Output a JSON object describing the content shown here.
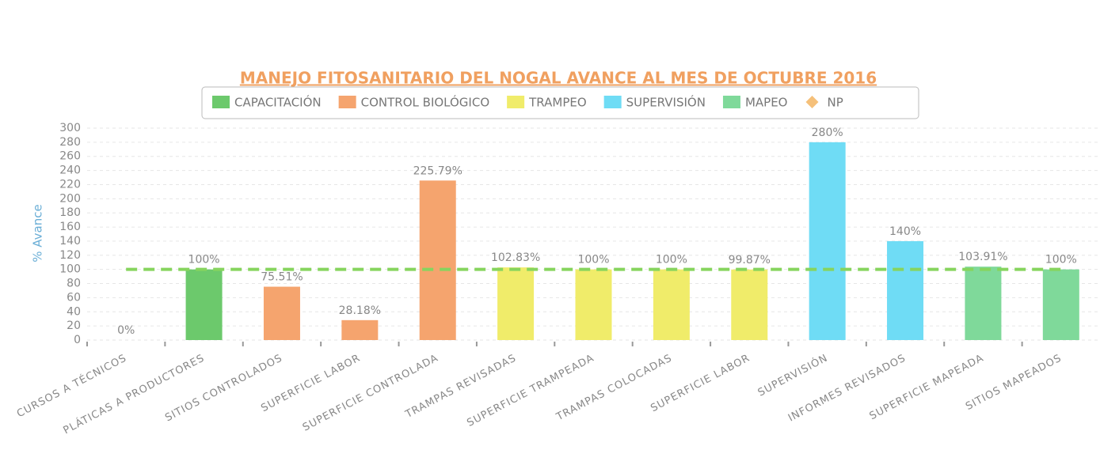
{
  "chart_data": {
    "type": "bar",
    "title": "MANEJO FITOSANITARIO DEL NOGAL AVANCE AL MES DE OCTUBRE 2016",
    "y_label": "% Avance",
    "categories": [
      "CURSOS A TÉCNICOS",
      "PLÁTICAS A PRODUCTORES",
      "SITIOS CONTROLADOS",
      "SUPERFICIE LABOR",
      "SUPERFICIE CONTROLADA",
      "TRAMPAS REVISADAS",
      "SUPERFICIE TRAMPEADA",
      "TRAMPAS COLOCADAS",
      "SUPERFICIE LABOR",
      "SUPERVISIÓN",
      "INFORMES REVISADOS",
      "SUPERFICIE MAPEADA",
      "SITIOS MAPEADOS"
    ],
    "series": [
      {
        "name": "CAPACITACIÓN",
        "color": "#6cc96c",
        "values": [
          0,
          100,
          null,
          null,
          null,
          null,
          null,
          null,
          null,
          null,
          null,
          null,
          null
        ],
        "value_labels": [
          "0%",
          "100%",
          null,
          null,
          null,
          null,
          null,
          null,
          null,
          null,
          null,
          null,
          null
        ]
      },
      {
        "name": "CONTROL BIOLÓGICO",
        "color": "#f5a46e",
        "values": [
          null,
          null,
          75.51,
          28.18,
          225.79,
          null,
          null,
          null,
          null,
          null,
          null,
          null,
          null
        ],
        "value_labels": [
          null,
          null,
          "75.51%",
          "28.18%",
          "225.79%",
          null,
          null,
          null,
          null,
          null,
          null,
          null,
          null
        ]
      },
      {
        "name": "TRAMPEO",
        "color": "#f0ec6a",
        "values": [
          null,
          null,
          null,
          null,
          null,
          102.83,
          100,
          100,
          99.87,
          null,
          null,
          null,
          null
        ],
        "value_labels": [
          null,
          null,
          null,
          null,
          null,
          "102.83%",
          "100%",
          "100%",
          "99.87%",
          null,
          null,
          null,
          null
        ]
      },
      {
        "name": "SUPERVISIÓN",
        "color": "#6fdcf5",
        "values": [
          null,
          null,
          null,
          null,
          null,
          null,
          null,
          null,
          null,
          280,
          140,
          null,
          null
        ],
        "value_labels": [
          null,
          null,
          null,
          null,
          null,
          null,
          null,
          null,
          null,
          "280%",
          "140%",
          null,
          null
        ]
      },
      {
        "name": "MAPEO",
        "color": "#7fd99a",
        "values": [
          null,
          null,
          null,
          null,
          null,
          null,
          null,
          null,
          null,
          null,
          null,
          103.91,
          100
        ],
        "value_labels": [
          null,
          null,
          null,
          null,
          null,
          null,
          null,
          null,
          null,
          null,
          null,
          "103.91%",
          "100%"
        ]
      },
      {
        "name": "NP",
        "type": "line",
        "color": "#f5c07a",
        "line_color": "#86d45e",
        "values": [
          100,
          100,
          100,
          100,
          100,
          100,
          100,
          100,
          100,
          100,
          100,
          100,
          100
        ]
      }
    ],
    "ylim": [
      0,
      300
    ],
    "yticks": [
      0,
      20,
      40,
      60,
      80,
      100,
      120,
      140,
      160,
      180,
      200,
      220,
      240,
      260,
      280,
      300
    ],
    "grid": true
  }
}
